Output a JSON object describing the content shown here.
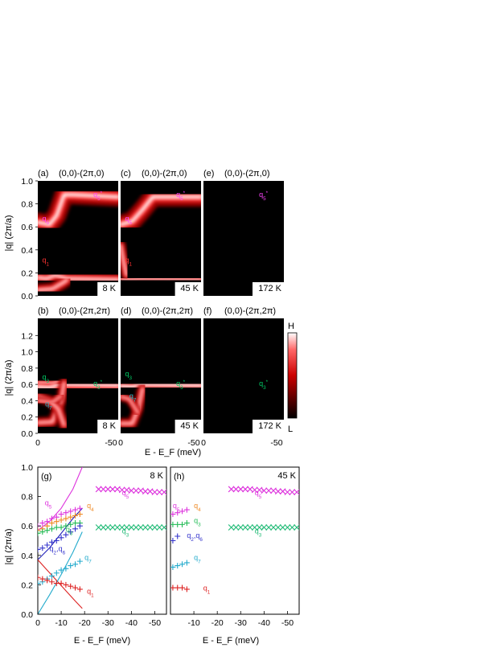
{
  "figure": {
    "y_label": "|q| (2π/a)",
    "x_label": "E - E_F (meV)",
    "colorbar": {
      "high": "H",
      "low": "L"
    }
  },
  "chart_data": [
    {
      "id": "a",
      "type": "heatmap",
      "panel_label": "(a)",
      "direction": "(0,0)-(2π,0)",
      "temperature": "8 K",
      "xlim": [
        0,
        -55
      ],
      "ylim": [
        0,
        1.0
      ],
      "yticks": [
        0,
        0.2,
        0.4,
        0.6,
        0.8,
        1.0
      ],
      "annotations": [
        {
          "text": "q5",
          "x": -3,
          "y": 0.65,
          "color": "#ff44ff"
        },
        {
          "text": "q5*",
          "x": -38,
          "y": 0.86,
          "color": "#ff44ff"
        },
        {
          "text": "q1",
          "x": -3,
          "y": 0.29,
          "color": "#ff3333"
        }
      ]
    },
    {
      "id": "c",
      "type": "heatmap",
      "panel_label": "(c)",
      "direction": "(0,0)-(2π,0)",
      "temperature": "45 K",
      "xlim": [
        0,
        -55
      ],
      "ylim": [
        0,
        1.0
      ],
      "annotations": [
        {
          "text": "q5",
          "x": -3,
          "y": 0.65,
          "color": "#ff44ff"
        },
        {
          "text": "q5*",
          "x": -38,
          "y": 0.86,
          "color": "#ff44ff"
        },
        {
          "text": "q1",
          "x": -3,
          "y": 0.29,
          "color": "#ff3333"
        }
      ]
    },
    {
      "id": "e",
      "type": "heatmap",
      "panel_label": "(e)",
      "direction": "(0,0)-(2π,0)",
      "temperature": "172 K",
      "xlim": [
        0,
        -55
      ],
      "ylim": [
        0,
        1.0
      ],
      "annotations": [
        {
          "text": "q5*",
          "x": -38,
          "y": 0.86,
          "color": "#ff44ff"
        }
      ]
    },
    {
      "id": "b",
      "type": "heatmap",
      "panel_label": "(b)",
      "direction": "(0,0)-(2π,2π)",
      "temperature": "8 K",
      "xlim": [
        0,
        -55
      ],
      "ylim": [
        0,
        1.41
      ],
      "yticks": [
        0,
        0.2,
        0.4,
        0.6,
        0.8,
        1.0,
        1.2
      ],
      "annotations": [
        {
          "text": "q3",
          "x": -3,
          "y": 0.66,
          "color": "#00cc66"
        },
        {
          "text": "q3*",
          "x": -38,
          "y": 0.58,
          "color": "#00cc66"
        },
        {
          "text": "q7",
          "x": -5,
          "y": 0.33,
          "color": "#22bbcc"
        }
      ]
    },
    {
      "id": "d",
      "type": "heatmap",
      "panel_label": "(d)",
      "direction": "(0,0)-(2π,2π)",
      "temperature": "45 K",
      "xlim": [
        0,
        -55
      ],
      "ylim": [
        0,
        1.41
      ],
      "annotations": [
        {
          "text": "q3",
          "x": -3,
          "y": 0.7,
          "color": "#00cc66"
        },
        {
          "text": "q3*",
          "x": -38,
          "y": 0.58,
          "color": "#00cc66"
        },
        {
          "text": "q7",
          "x": -6,
          "y": 0.43,
          "color": "#22bbcc"
        }
      ]
    },
    {
      "id": "f",
      "type": "heatmap",
      "panel_label": "(f)",
      "direction": "(0,0)-(2π,2π)",
      "temperature": "172 K",
      "xlim": [
        0,
        -55
      ],
      "ylim": [
        0,
        1.41
      ],
      "annotations": [
        {
          "text": "q3*",
          "x": -38,
          "y": 0.58,
          "color": "#00cc66"
        }
      ]
    },
    {
      "id": "g",
      "type": "scatter",
      "panel_label": "(g)",
      "temperature": "8 K",
      "xlim": [
        0,
        -55
      ],
      "ylim": [
        0,
        1.0
      ],
      "xticks": [
        0,
        -10,
        -20,
        -30,
        -40,
        -50
      ],
      "yticks": [
        0,
        0.2,
        0.4,
        0.6,
        0.8,
        1.0
      ],
      "series": [
        {
          "name": "q5*",
          "color": "#dd33dd",
          "marker": "x",
          "x": [
            -26,
            -28,
            -30,
            -32,
            -34,
            -36,
            -38,
            -40,
            -42,
            -44,
            -46,
            -48,
            -50,
            -52,
            -54
          ],
          "y": [
            0.85,
            0.85,
            0.85,
            0.85,
            0.85,
            0.845,
            0.845,
            0.84,
            0.84,
            0.84,
            0.835,
            0.835,
            0.83,
            0.83,
            0.83
          ]
        },
        {
          "name": "q3*",
          "color": "#22bb77",
          "marker": "x",
          "x": [
            -26,
            -28,
            -30,
            -32,
            -34,
            -36,
            -38,
            -40,
            -42,
            -44,
            -46,
            -48,
            -50,
            -52,
            -54
          ],
          "y": [
            0.59,
            0.59,
            0.59,
            0.59,
            0.59,
            0.59,
            0.59,
            0.59,
            0.59,
            0.59,
            0.59,
            0.59,
            0.59,
            0.59,
            0.59
          ]
        },
        {
          "name": "q5",
          "color": "#dd33dd",
          "marker": "+",
          "x": [
            0,
            -2,
            -4,
            -6,
            -8,
            -10,
            -12,
            -14,
            -16,
            -18
          ],
          "y": [
            0.6,
            0.62,
            0.63,
            0.65,
            0.66,
            0.68,
            0.69,
            0.7,
            0.71,
            0.72
          ]
        },
        {
          "name": "q4",
          "color": "#ee8822",
          "marker": "+",
          "x": [
            0,
            -2,
            -4,
            -6,
            -8,
            -10,
            -12,
            -14,
            -16,
            -18
          ],
          "y": [
            0.57,
            0.58,
            0.6,
            0.62,
            0.63,
            0.64,
            0.65,
            0.66,
            0.67,
            0.68
          ]
        },
        {
          "name": "q3",
          "color": "#22bb55",
          "marker": "+",
          "x": [
            0,
            -2,
            -4,
            -6,
            -8,
            -10,
            -12,
            -14,
            -16,
            -18
          ],
          "y": [
            0.55,
            0.56,
            0.57,
            0.58,
            0.59,
            0.59,
            0.6,
            0.61,
            0.62,
            0.62
          ]
        },
        {
          "name": "q2,q6",
          "color": "#3333cc",
          "marker": "+",
          "x": [
            0,
            -2,
            -4,
            -6,
            -8,
            -10,
            -12,
            -14,
            -16,
            -18
          ],
          "y": [
            0.44,
            0.45,
            0.47,
            0.49,
            0.5,
            0.52,
            0.54,
            0.56,
            0.58,
            0.6
          ]
        },
        {
          "name": "q7",
          "color": "#22aacc",
          "marker": "+",
          "x": [
            0,
            -2,
            -4,
            -6,
            -8,
            -10,
            -12,
            -14,
            -16,
            -18
          ],
          "y": [
            0.21,
            0.22,
            0.24,
            0.26,
            0.28,
            0.3,
            0.31,
            0.33,
            0.34,
            0.36
          ]
        },
        {
          "name": "q1",
          "color": "#dd2222",
          "marker": "+",
          "x": [
            0,
            -2,
            -4,
            -6,
            -8,
            -10,
            -12,
            -14,
            -16,
            -18
          ],
          "y": [
            0.25,
            0.24,
            0.23,
            0.22,
            0.21,
            0.21,
            0.2,
            0.19,
            0.18,
            0.17
          ]
        }
      ],
      "curves": [
        {
          "color": "#dd33dd",
          "x": [
            0,
            -5,
            -10,
            -15,
            -19
          ],
          "y": [
            0.57,
            0.63,
            0.72,
            0.85,
            1.0
          ]
        },
        {
          "color": "#2222bb",
          "x": [
            0,
            -5,
            -10,
            -15,
            -19
          ],
          "y": [
            0.37,
            0.45,
            0.55,
            0.65,
            0.72
          ]
        },
        {
          "color": "#dd2222",
          "x": [
            0,
            -4,
            -8,
            -12,
            -16,
            -19
          ],
          "y": [
            0.37,
            0.3,
            0.23,
            0.16,
            0.09,
            0.04
          ]
        },
        {
          "color": "#22aacc",
          "x": [
            0,
            -5,
            -10,
            -15,
            -19
          ],
          "y": [
            0.0,
            0.13,
            0.27,
            0.42,
            0.56
          ]
        }
      ],
      "labels": [
        {
          "text": "q5",
          "x": -3,
          "y": 0.74,
          "color": "#dd33dd"
        },
        {
          "text": "q4",
          "x": -21,
          "y": 0.72,
          "color": "#ee8822"
        },
        {
          "text": "q3",
          "x": -12,
          "y": 0.56,
          "color": "#22bb55"
        },
        {
          "text": "q2,q6",
          "x": -5,
          "y": 0.43,
          "color": "#3333cc"
        },
        {
          "text": "q7",
          "x": -20,
          "y": 0.37,
          "color": "#22aacc"
        },
        {
          "text": "q1",
          "x": -21,
          "y": 0.14,
          "color": "#dd2222"
        },
        {
          "text": "q5*",
          "x": -36,
          "y": 0.81,
          "color": "#dd33dd"
        },
        {
          "text": "q3*",
          "x": -36,
          "y": 0.55,
          "color": "#22bb77"
        }
      ]
    },
    {
      "id": "h",
      "type": "scatter",
      "panel_label": "(h)",
      "temperature": "45 K",
      "xlim": [
        0,
        -55
      ],
      "ylim": [
        0,
        1.0
      ],
      "xticks": [
        -10,
        -20,
        -30,
        -40,
        -50
      ],
      "series": [
        {
          "name": "q5*",
          "color": "#dd33dd",
          "marker": "x",
          "x": [
            -26,
            -28,
            -30,
            -32,
            -34,
            -36,
            -38,
            -40,
            -42,
            -44,
            -46,
            -48,
            -50,
            -52,
            -54
          ],
          "y": [
            0.85,
            0.85,
            0.85,
            0.85,
            0.85,
            0.845,
            0.845,
            0.84,
            0.84,
            0.84,
            0.835,
            0.835,
            0.83,
            0.83,
            0.83
          ]
        },
        {
          "name": "q3*",
          "color": "#22bb77",
          "marker": "x",
          "x": [
            -26,
            -28,
            -30,
            -32,
            -34,
            -36,
            -38,
            -40,
            -42,
            -44,
            -46,
            -48,
            -50,
            -52,
            -54
          ],
          "y": [
            0.59,
            0.59,
            0.59,
            0.59,
            0.59,
            0.59,
            0.59,
            0.59,
            0.59,
            0.59,
            0.59,
            0.59,
            0.59,
            0.59,
            0.59
          ]
        },
        {
          "name": "q5",
          "color": "#dd33dd",
          "marker": "+",
          "x": [
            -1,
            -3,
            -5,
            -7
          ],
          "y": [
            0.68,
            0.69,
            0.7,
            0.71
          ]
        },
        {
          "name": "q3",
          "color": "#22bb55",
          "marker": "+",
          "x": [
            -1,
            -3,
            -5,
            -7
          ],
          "y": [
            0.61,
            0.61,
            0.61,
            0.62
          ]
        },
        {
          "name": "q2,q6",
          "color": "#3333cc",
          "marker": "+",
          "x": [
            -1,
            -3
          ],
          "y": [
            0.5,
            0.53
          ]
        },
        {
          "name": "q7",
          "color": "#22aacc",
          "marker": "+",
          "x": [
            -1,
            -3,
            -5,
            -7
          ],
          "y": [
            0.32,
            0.33,
            0.34,
            0.35
          ]
        },
        {
          "name": "q1",
          "color": "#dd2222",
          "marker": "+",
          "x": [
            -1,
            -3,
            -5,
            -7
          ],
          "y": [
            0.18,
            0.18,
            0.18,
            0.17
          ]
        }
      ],
      "labels": [
        {
          "text": "q5",
          "x": -1,
          "y": 0.72,
          "color": "#dd33dd"
        },
        {
          "text": "q4",
          "x": -10,
          "y": 0.72,
          "color": "#ee8822"
        },
        {
          "text": "q3",
          "x": -10,
          "y": 0.62,
          "color": "#22bb55"
        },
        {
          "text": "q2,q6",
          "x": -7,
          "y": 0.52,
          "color": "#3333cc"
        },
        {
          "text": "q7",
          "x": -10,
          "y": 0.37,
          "color": "#22aacc"
        },
        {
          "text": "q1",
          "x": -14,
          "y": 0.16,
          "color": "#dd2222"
        },
        {
          "text": "q5*",
          "x": -36,
          "y": 0.81,
          "color": "#dd33dd"
        },
        {
          "text": "q3*",
          "x": -36,
          "y": 0.55,
          "color": "#22bb77"
        }
      ]
    }
  ]
}
